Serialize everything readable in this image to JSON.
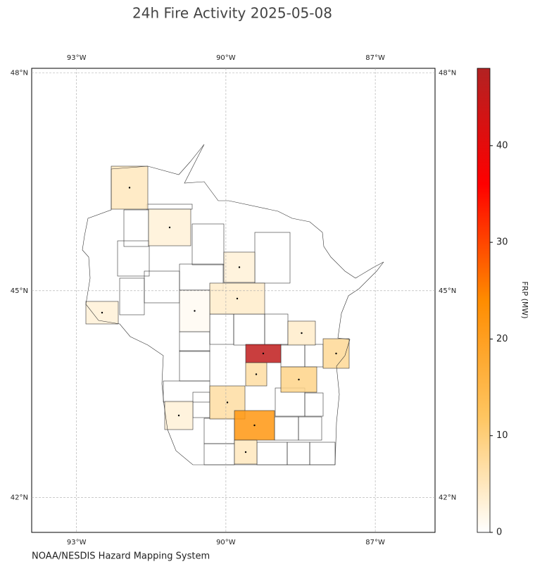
{
  "chart_data": {
    "type": "choropleth",
    "title": "24h Fire Activity 2025-05-08",
    "xlim": [
      -93.9,
      -85.8
    ],
    "ylim": [
      41.48,
      48.06
    ],
    "xticks": [
      {
        "value": -93,
        "label": "93°W"
      },
      {
        "value": -90,
        "label": "90°W"
      },
      {
        "value": -87,
        "label": "87°W"
      }
    ],
    "yticks": [
      {
        "value": 42,
        "label": "42°N"
      },
      {
        "value": 45,
        "label": "45°N"
      },
      {
        "value": 48,
        "label": "48°N"
      }
    ],
    "grid": true,
    "colorbar": {
      "label": "FRP (MW)",
      "clim": [
        0,
        48
      ],
      "ticks": [
        0,
        10,
        20,
        30,
        40
      ],
      "colormap": [
        "#ffffff",
        "#fec560",
        "#ff8c00",
        "#ff0000",
        "#b22222"
      ]
    },
    "values": [
      5,
      3,
      3,
      4,
      1,
      3,
      4,
      46,
      8,
      7,
      9,
      7,
      3,
      22,
      5
    ],
    "source": "NOAA/NESDIS Hazard Mapping System"
  }
}
